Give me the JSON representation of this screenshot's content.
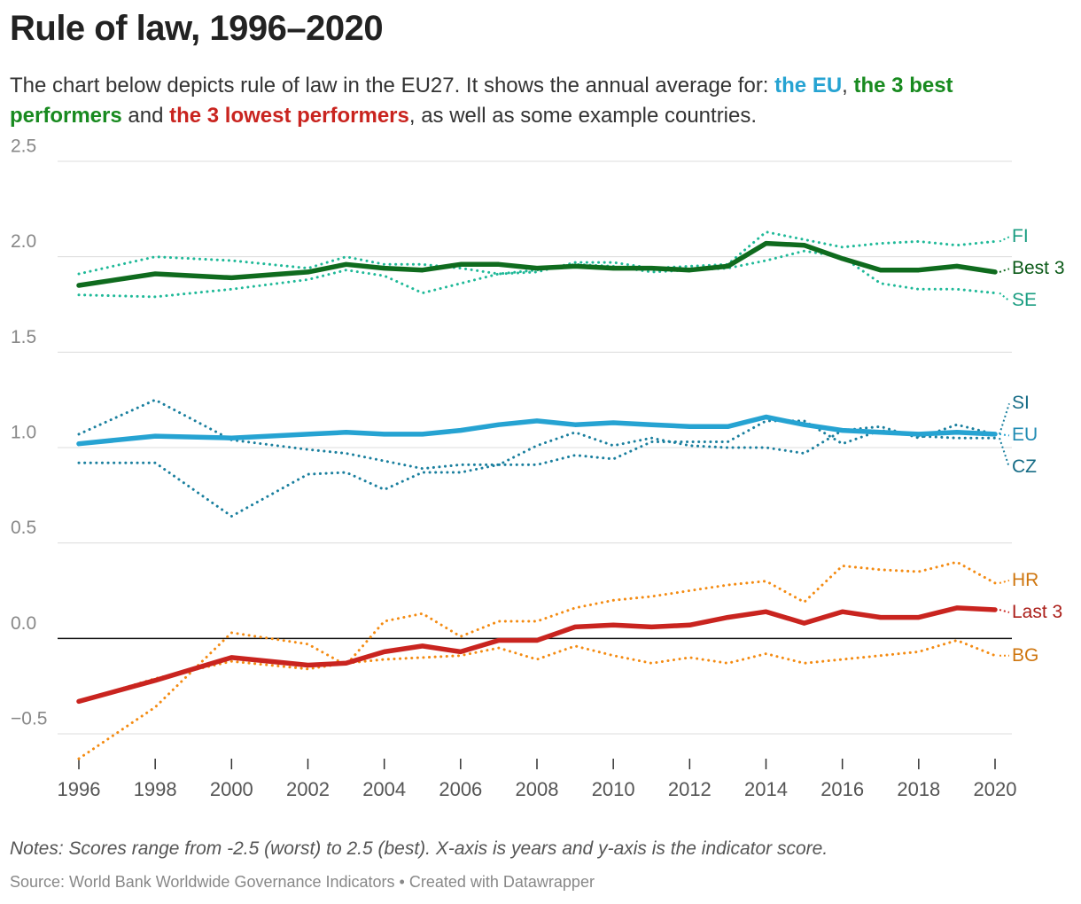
{
  "chart_data": {
    "type": "line",
    "title": "Rule of law, 1996–2020",
    "subtitle": [
      {
        "text": "The chart below depicts rule of law in the EU27. It shows the annual average for: "
      },
      {
        "text": "the EU",
        "color": "#26a3d2"
      },
      {
        "text": ", "
      },
      {
        "text": "the 3 best performers",
        "color": "#188a1f"
      },
      {
        "text": " and "
      },
      {
        "text": "the 3 lowest performers",
        "color": "#c9241f"
      },
      {
        "text": ", as well as some example countries."
      }
    ],
    "notes": "Notes: Scores range from -2.5 (worst) to 2.5 (best). X-axis is years and y-axis is the indicator score.",
    "source": "Source: World Bank Worldwide Governance Indicators • Created with Datawrapper",
    "x": [
      1996,
      1998,
      2000,
      2002,
      2003,
      2004,
      2005,
      2006,
      2007,
      2008,
      2009,
      2010,
      2011,
      2012,
      2013,
      2014,
      2015,
      2016,
      2017,
      2018,
      2019,
      2020
    ],
    "xlim": [
      1996,
      2020
    ],
    "xticks": [
      1996,
      1998,
      2000,
      2002,
      2004,
      2006,
      2008,
      2010,
      2012,
      2014,
      2016,
      2018,
      2020
    ],
    "ylim": [
      -0.5,
      2.5
    ],
    "yticks": [
      {
        "value": -0.5,
        "label": "−0.5"
      },
      {
        "value": 0,
        "label": "0.0"
      },
      0.5,
      {
        "value": 1,
        "label": "1.0"
      },
      1.5,
      {
        "value": 2,
        "label": "2.0"
      },
      2.5
    ],
    "grid": true,
    "series": [
      {
        "name": "FI",
        "color": "#1fb998",
        "style": "dotted",
        "values": [
          1.91,
          2.0,
          1.98,
          1.94,
          2.0,
          1.96,
          1.96,
          1.94,
          1.91,
          1.92,
          1.97,
          1.97,
          1.94,
          1.95,
          1.96,
          2.13,
          2.09,
          2.05,
          2.07,
          2.08,
          2.06,
          2.08
        ]
      },
      {
        "name": "SE",
        "color": "#1fb998",
        "style": "dotted",
        "values": [
          1.8,
          1.79,
          1.83,
          1.88,
          1.93,
          1.9,
          1.81,
          1.86,
          1.91,
          1.93,
          1.96,
          1.95,
          1.92,
          1.93,
          1.94,
          1.98,
          2.03,
          2.0,
          1.86,
          1.83,
          1.83,
          1.81
        ]
      },
      {
        "name": "SI",
        "color": "#1a7f9e",
        "style": "dotted",
        "values": [
          1.07,
          1.25,
          1.04,
          0.99,
          0.97,
          0.93,
          0.89,
          0.91,
          0.91,
          1.01,
          1.08,
          1.01,
          1.05,
          1.01,
          1.0,
          1.0,
          0.97,
          1.09,
          1.11,
          1.05,
          1.12,
          1.07
        ]
      },
      {
        "name": "CZ",
        "color": "#1a7f9e",
        "style": "dotted",
        "values": [
          0.92,
          0.92,
          0.64,
          0.86,
          0.87,
          0.78,
          0.87,
          0.87,
          0.91,
          0.91,
          0.96,
          0.94,
          1.03,
          1.03,
          1.03,
          1.14,
          1.14,
          1.02,
          1.09,
          1.06,
          1.05,
          1.05
        ]
      },
      {
        "name": "HR",
        "color": "#f48b12",
        "style": "dotted",
        "values": [
          -0.63,
          -0.36,
          0.03,
          -0.03,
          -0.14,
          0.09,
          0.13,
          0.01,
          0.09,
          0.09,
          0.16,
          0.2,
          0.22,
          0.25,
          0.28,
          0.3,
          0.19,
          0.38,
          0.36,
          0.35,
          0.4,
          0.29
        ]
      },
      {
        "name": "BG",
        "color": "#f48b12",
        "style": "dotted",
        "values": [
          -0.33,
          -0.21,
          -0.12,
          -0.16,
          -0.13,
          -0.11,
          -0.1,
          -0.09,
          -0.05,
          -0.11,
          -0.04,
          -0.09,
          -0.13,
          -0.1,
          -0.13,
          -0.08,
          -0.13,
          -0.11,
          -0.09,
          -0.07,
          -0.01,
          -0.09
        ]
      },
      {
        "name": "EU",
        "color": "#26a3d2",
        "style": "solid",
        "values": [
          1.02,
          1.06,
          1.05,
          1.07,
          1.08,
          1.07,
          1.07,
          1.09,
          1.12,
          1.14,
          1.12,
          1.13,
          1.12,
          1.11,
          1.11,
          1.16,
          1.12,
          1.09,
          1.08,
          1.07,
          1.08,
          1.07
        ]
      },
      {
        "name": "Best 3",
        "color": "#0f6b1e",
        "style": "solid",
        "values": [
          1.85,
          1.91,
          1.89,
          1.92,
          1.96,
          1.94,
          1.93,
          1.96,
          1.96,
          1.94,
          1.95,
          1.94,
          1.94,
          1.93,
          1.95,
          2.07,
          2.06,
          1.99,
          1.93,
          1.93,
          1.95,
          1.92
        ]
      },
      {
        "name": "Last 3",
        "color": "#c9241f",
        "style": "solid",
        "values": [
          -0.33,
          -0.22,
          -0.1,
          -0.14,
          -0.13,
          -0.07,
          -0.04,
          -0.07,
          -0.01,
          -0.01,
          0.06,
          0.07,
          0.06,
          0.07,
          0.11,
          0.14,
          0.08,
          0.14,
          0.11,
          0.11,
          0.16,
          0.15
        ]
      }
    ]
  }
}
